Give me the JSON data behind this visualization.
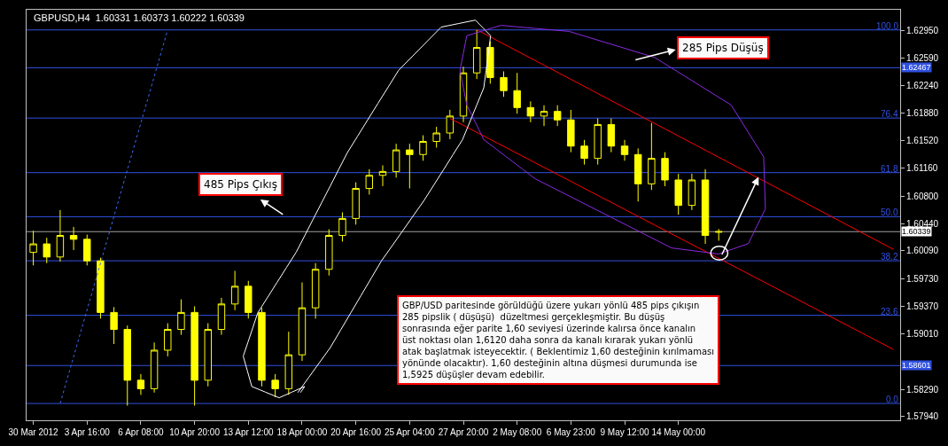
{
  "chart_data": {
    "type": "candlestick",
    "title": "GBPUSD,H4  1.60331 1.60373 1.60222 1.60339",
    "categories": [
      "30 Mar 2012",
      null,
      null,
      null,
      "3 Apr 16:00",
      null,
      null,
      null,
      "6 Apr 08:00",
      null,
      null,
      null,
      "10 Apr 20:00",
      null,
      null,
      null,
      "13 Apr 12:00",
      null,
      null,
      null,
      "18 Apr 00:00",
      null,
      null,
      null,
      "20 Apr 16:00",
      null,
      null,
      null,
      "25 Apr 04:00",
      null,
      null,
      null,
      "27 Apr 20:00",
      null,
      null,
      null,
      "2 May 08:00",
      null,
      null,
      null,
      "6 May 23:00",
      null,
      null,
      null,
      "9 May 12:00",
      null,
      null,
      null,
      "14 May 00:00",
      null,
      null,
      null,
      null,
      null,
      null,
      null,
      null,
      null,
      null,
      null,
      null,
      null,
      null,
      null,
      null
    ],
    "ohlc": [
      [
        1.6007,
        1.6035,
        1.599,
        1.6018
      ],
      [
        1.6018,
        1.6026,
        1.5993,
        1.6001
      ],
      [
        1.6001,
        1.6062,
        1.5995,
        1.6029
      ],
      [
        1.6029,
        1.604,
        1.601,
        1.6024
      ],
      [
        1.6024,
        1.603,
        1.599,
        1.5996
      ],
      [
        1.5996,
        1.6,
        1.5921,
        1.5929
      ],
      [
        1.5929,
        1.5936,
        1.5888,
        1.5907
      ],
      [
        1.5907,
        1.5912,
        1.5808,
        1.5841
      ],
      [
        1.5841,
        1.5849,
        1.5822,
        1.583
      ],
      [
        1.583,
        1.589,
        1.5825,
        1.588
      ],
      [
        1.588,
        1.5915,
        1.5872,
        1.5907
      ],
      [
        1.5907,
        1.5946,
        1.59,
        1.5929
      ],
      [
        1.5929,
        1.5937,
        1.5808,
        1.5841
      ],
      [
        1.5841,
        1.5915,
        1.5833,
        1.5907
      ],
      [
        1.5907,
        1.5948,
        1.59,
        1.594
      ],
      [
        1.594,
        1.5983,
        1.5932,
        1.5963
      ],
      [
        1.5963,
        1.597,
        1.5921,
        1.5929
      ],
      [
        1.5929,
        1.5935,
        1.5833,
        1.5841
      ],
      [
        1.5841,
        1.5849,
        1.5819,
        1.583
      ],
      [
        1.583,
        1.5904,
        1.5822,
        1.5874
      ],
      [
        1.5874,
        1.5968,
        1.5866,
        1.5935
      ],
      [
        1.5935,
        1.5993,
        1.5921,
        1.5985
      ],
      [
        1.5985,
        1.6037,
        1.5977,
        1.6029
      ],
      [
        1.6029,
        1.6059,
        1.6021,
        1.6051
      ],
      [
        1.6051,
        1.6098,
        1.6043,
        1.609
      ],
      [
        1.609,
        1.6115,
        1.6082,
        1.6107
      ],
      [
        1.6107,
        1.612,
        1.6093,
        1.6112
      ],
      [
        1.6112,
        1.6148,
        1.6104,
        1.614
      ],
      [
        1.614,
        1.6148,
        1.609,
        1.6134
      ],
      [
        1.6134,
        1.6159,
        1.6126,
        1.6151
      ],
      [
        1.6151,
        1.617,
        1.6143,
        1.6162
      ],
      [
        1.6162,
        1.6192,
        1.6154,
        1.6184
      ],
      [
        1.6184,
        1.6248,
        1.6176,
        1.624
      ],
      [
        1.624,
        1.6296,
        1.6232,
        1.6273
      ],
      [
        1.6273,
        1.6281,
        1.6226,
        1.6234
      ],
      [
        1.6234,
        1.6242,
        1.6209,
        1.6217
      ],
      [
        1.6217,
        1.624,
        1.6187,
        1.6195
      ],
      [
        1.6195,
        1.6203,
        1.6176,
        1.6184
      ],
      [
        1.6184,
        1.6198,
        1.6171,
        1.619
      ],
      [
        1.619,
        1.6198,
        1.6171,
        1.6179
      ],
      [
        1.6179,
        1.6192,
        1.6137,
        1.6145
      ],
      [
        1.6145,
        1.6153,
        1.6121,
        1.6129
      ],
      [
        1.6129,
        1.6181,
        1.6121,
        1.6173
      ],
      [
        1.6173,
        1.6181,
        1.6137,
        1.6145
      ],
      [
        1.6145,
        1.6153,
        1.6126,
        1.6134
      ],
      [
        1.6134,
        1.6142,
        1.6073,
        1.6096
      ],
      [
        1.6096,
        1.6175,
        1.6088,
        1.6129
      ],
      [
        1.6129,
        1.6137,
        1.6093,
        1.6101
      ],
      [
        1.6101,
        1.6109,
        1.6056,
        1.6068
      ],
      [
        1.6068,
        1.6109,
        1.6062,
        1.6101
      ],
      [
        1.6101,
        1.6115,
        1.6018,
        1.6029
      ],
      [
        1.60331,
        1.60373,
        1.60222,
        1.60339
      ],
      null,
      null,
      null,
      null,
      null,
      null,
      null,
      null,
      null,
      null,
      null,
      null,
      null
    ],
    "color": "#ffff00",
    "series": [
      {
        "type": "line",
        "values": [
          null,
          null,
          null,
          null,
          null,
          null,
          null,
          null,
          null,
          null,
          null,
          null,
          null,
          null,
          null,
          null,
          null,
          null,
          null,
          null,
          null,
          null,
          null,
          null,
          null,
          null,
          null,
          null,
          null,
          null,
          null,
          null,
          null,
          1.6296,
          null,
          null,
          null,
          null,
          null,
          null,
          null,
          null,
          null,
          null,
          null,
          null,
          null,
          null,
          null,
          null,
          null,
          null,
          null,
          null,
          null,
          null,
          null,
          null,
          null,
          null,
          null,
          null,
          null,
          null,
          1.6011
        ],
        "color": "#ff0000",
        "line_style": "solid"
      },
      {
        "type": "line",
        "values": [
          null,
          null,
          null,
          null,
          null,
          null,
          null,
          null,
          null,
          null,
          null,
          null,
          null,
          null,
          null,
          null,
          null,
          null,
          null,
          null,
          null,
          null,
          null,
          null,
          null,
          null,
          null,
          null,
          null,
          null,
          null,
          1.6181,
          null,
          null,
          null,
          null,
          null,
          null,
          null,
          null,
          null,
          null,
          null,
          null,
          null,
          null,
          null,
          null,
          null,
          null,
          null,
          null,
          null,
          null,
          null,
          null,
          null,
          null,
          null,
          null,
          null,
          null,
          null,
          null,
          1.5881
        ],
        "color": "#ff0000",
        "line_style": "solid"
      },
      {
        "type": "line",
        "values": [
          null,
          null,
          1.5811,
          null,
          null,
          null,
          null,
          null,
          null,
          null,
          1.6296,
          null,
          null,
          null,
          null,
          null,
          null,
          null,
          null,
          null,
          null,
          null,
          null,
          null,
          null,
          null,
          null,
          null,
          null,
          null,
          null,
          null,
          null,
          null,
          null,
          null,
          null,
          null,
          null,
          null,
          null,
          null,
          null,
          null,
          null,
          null,
          null,
          null,
          null,
          null,
          null,
          null,
          null,
          null,
          null,
          null,
          null,
          null,
          null,
          null,
          null,
          null,
          null,
          null,
          null
        ],
        "color": "#3a6af0",
        "line_style": "dotted"
      }
    ],
    "ylim": [
      1.5789,
      1.6322
    ],
    "yticks": [
      {
        "value": 1.6295,
        "label": "1.62950"
      },
      {
        "value": 1.6259,
        "label": "1.62590"
      },
      {
        "value": 1.6224,
        "label": "1.62240"
      },
      {
        "value": 1.6188,
        "label": "1.61880"
      },
      {
        "value": 1.6152,
        "label": "1.61520"
      },
      {
        "value": 1.6116,
        "label": "1.61160"
      },
      {
        "value": 1.608,
        "label": "1.60800"
      },
      {
        "value": 1.6044,
        "label": "1.60440"
      },
      {
        "value": 1.6009,
        "label": "1.60090"
      },
      {
        "value": 1.5973,
        "label": "1.59730"
      },
      {
        "value": 1.5937,
        "label": "1.59370"
      },
      {
        "value": 1.5901,
        "label": "1.59010"
      },
      {
        "value": 1.5829,
        "label": "1.58290"
      },
      {
        "value": 1.5794,
        "label": "1.57940"
      }
    ],
    "y2lim": [
      -4.5,
      105.4
    ],
    "ref_lines": [
      {
        "axis": "y2",
        "value": 100,
        "label": "100.0",
        "color": "#3050e0"
      },
      {
        "axis": "y2",
        "value": 76.4,
        "label": "76.4",
        "color": "#3050e0"
      },
      {
        "axis": "y2",
        "value": 61.8,
        "label": "61.8",
        "color": "#3050e0"
      },
      {
        "axis": "y2",
        "value": 50,
        "label": "50.0",
        "color": "#3050e0"
      },
      {
        "axis": "y2",
        "value": 38.2,
        "label": "38.2",
        "color": "#3050e0"
      },
      {
        "axis": "y2",
        "value": 23.6,
        "label": "23.6",
        "color": "#3050e0"
      },
      {
        "axis": "y2",
        "value": 0,
        "label": "0.0",
        "color": "#3050e0"
      },
      {
        "axis": "y",
        "value": 1.62467,
        "label": "1.62467",
        "color": "#3050e0"
      },
      {
        "axis": "y",
        "value": 1.58601,
        "label": "1.58601",
        "color": "#3050e0"
      },
      {
        "axis": "y",
        "value": 1.60339,
        "label": "1.60339",
        "color": "#a0a0a0"
      }
    ],
    "annotations": [
      "485 Pips Çıkış",
      "285 Pips Düşüş",
      "GBP/USD paritesinde görüldüğü üzere yukarı yönlü 485 pips çıkışın\n285 pipslik ( düşüşü)  düzeltmesi gerçekleşmiştir. Bu düşüş\nsonrasında eğer parite 1,60 seviyesi üzerinde kalırsa önce kanalın\nüst noktası olan 1,6120 daha sonra da kanalı kırarak yukarı yönlü\natak başlatmak isteyecektir. ( Beklentimiz 1,60 desteğinin kırılmaması\nyönünde olacaktır). 1,60 desteğinin altına düşmesi durumunda ise\n1,5925 düşüşler devam edebilir."
    ],
    "grid": false
  }
}
